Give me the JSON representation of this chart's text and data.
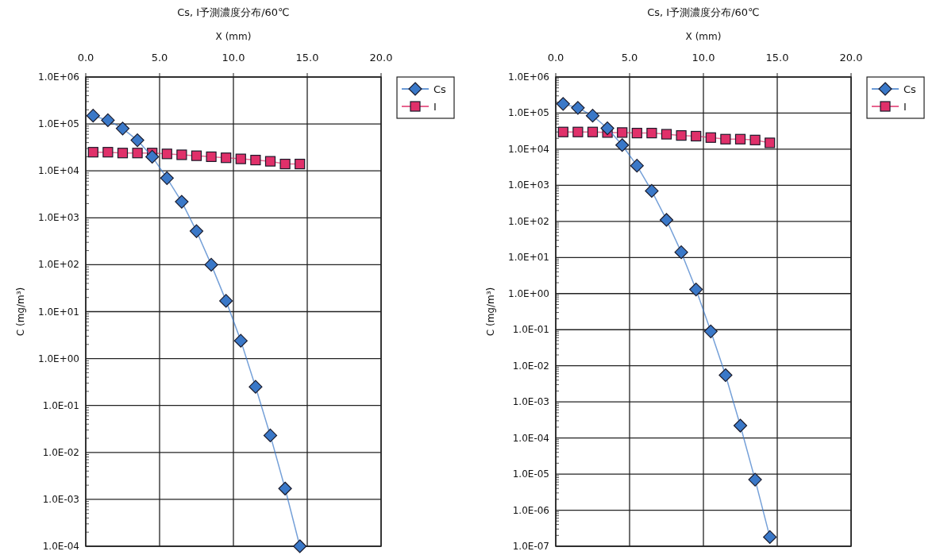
{
  "chart_data": [
    {
      "type": "line",
      "title": "Cs, I予測濃度分布/60℃",
      "xlabel": "X (mm)",
      "ylabel": "C (mg/m³)",
      "log": "y",
      "grid": true,
      "legend": "top right",
      "line_style": "solid",
      "xlim": [
        0,
        20
      ],
      "xticks": [
        {
          "value": 0,
          "label": "0.0"
        },
        {
          "value": 5,
          "label": "5.0"
        },
        {
          "value": 10,
          "label": "10.0"
        },
        {
          "value": 15,
          "label": "15.0"
        },
        {
          "value": 20,
          "label": "20.0"
        }
      ],
      "ylim": [
        0.0001,
        1000000
      ],
      "yticks": [
        {
          "value": 1000000,
          "label": "1.0E+06"
        },
        {
          "value": 100000,
          "label": "1.0E+05"
        },
        {
          "value": 10000,
          "label": "1.0E+04"
        },
        {
          "value": 1000,
          "label": "1.0E+03"
        },
        {
          "value": 100,
          "label": "1.0E+02"
        },
        {
          "value": 10,
          "label": "1.0E+01"
        },
        {
          "value": 1,
          "label": "1.0E+00"
        },
        {
          "value": 0.1,
          "label": "1.0E-01"
        },
        {
          "value": 0.01,
          "label": "1.0E-02"
        },
        {
          "value": 0.001,
          "label": "1.0E-03"
        },
        {
          "value": 0.0001,
          "label": "1.0E-04"
        }
      ],
      "x": [
        0.5,
        1.5,
        2.5,
        3.5,
        4.5,
        5.5,
        6.5,
        7.5,
        8.5,
        9.5,
        10.5,
        11.5,
        12.5,
        13.5,
        14.5
      ],
      "series": [
        {
          "name": "Cs",
          "color": "#3a78c8",
          "marker": "diamond",
          "values": [
            150000,
            120000,
            80000,
            45000,
            20000,
            7000,
            2200,
            520,
            100,
            17,
            2.4,
            0.25,
            0.023,
            0.0017,
            0.0001
          ]
        },
        {
          "name": "I",
          "color": "#e0306a",
          "marker": "square",
          "values": [
            25000,
            25000,
            24000,
            24000,
            24000,
            23000,
            22000,
            21000,
            20000,
            19000,
            18000,
            17000,
            16000,
            14000,
            14000
          ]
        }
      ]
    },
    {
      "type": "line",
      "title": "Cs, I予測濃度分布/60℃",
      "xlabel": "X (mm)",
      "ylabel": "C (mg/m³)",
      "log": "y",
      "grid": true,
      "legend": "top right",
      "line_style": "solid",
      "xlim": [
        0,
        20
      ],
      "xticks": [
        {
          "value": 0,
          "label": "0.0"
        },
        {
          "value": 5,
          "label": "5.0"
        },
        {
          "value": 10,
          "label": "10.0"
        },
        {
          "value": 15,
          "label": "15.0"
        },
        {
          "value": 20,
          "label": "20.0"
        }
      ],
      "ylim": [
        1e-07,
        1000000
      ],
      "yticks": [
        {
          "value": 1000000,
          "label": "1.0E+06"
        },
        {
          "value": 100000,
          "label": "1.0E+05"
        },
        {
          "value": 10000,
          "label": "1.0E+04"
        },
        {
          "value": 1000,
          "label": "1.0E+03"
        },
        {
          "value": 100,
          "label": "1.0E+02"
        },
        {
          "value": 10,
          "label": "1.0E+01"
        },
        {
          "value": 1,
          "label": "1.0E+00"
        },
        {
          "value": 0.1,
          "label": "1.0E-01"
        },
        {
          "value": 0.01,
          "label": "1.0E-02"
        },
        {
          "value": 0.001,
          "label": "1.0E-03"
        },
        {
          "value": 0.0001,
          "label": "1.0E-04"
        },
        {
          "value": 1e-05,
          "label": "1.0E-05"
        },
        {
          "value": 1e-06,
          "label": "1.0E-06"
        },
        {
          "value": 1e-07,
          "label": "1.0E-07"
        }
      ],
      "x": [
        0.5,
        1.5,
        2.5,
        3.5,
        4.5,
        5.5,
        6.5,
        7.5,
        8.5,
        9.5,
        10.5,
        11.5,
        12.5,
        13.5,
        14.5
      ],
      "series": [
        {
          "name": "Cs",
          "color": "#3a78c8",
          "marker": "diamond",
          "values": [
            180000,
            140000,
            85000,
            38000,
            13000,
            3500,
            700,
            110,
            14,
            1.3,
            0.09,
            0.0055,
            0.00022,
            7e-06,
            1.8e-07
          ]
        },
        {
          "name": "I",
          "color": "#e0306a",
          "marker": "square",
          "values": [
            30000,
            30000,
            30000,
            29000,
            29000,
            28000,
            28000,
            26000,
            24000,
            23000,
            21000,
            19000,
            19000,
            18000,
            15000
          ]
        }
      ]
    }
  ]
}
